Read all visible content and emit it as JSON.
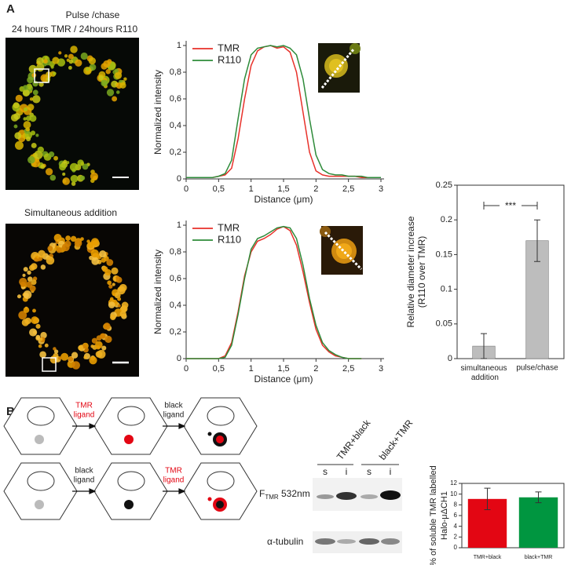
{
  "panel_labels": [
    "A",
    "B"
  ],
  "images": [
    {
      "caption": [
        "Pulse /chase",
        "24 hours TMR / 24hours R110"
      ]
    },
    {
      "caption": [
        "Simultaneous addition"
      ]
    }
  ],
  "chart_data": [
    {
      "type": "line",
      "x_label": "Distance (μm)",
      "y_label": "Normalized intensity",
      "x": [
        0,
        0.1,
        0.2,
        0.3,
        0.4,
        0.5,
        0.6,
        0.7,
        0.8,
        0.9,
        1,
        1.1,
        1.2,
        1.3,
        1.4,
        1.5,
        1.6,
        1.7,
        1.8,
        1.9,
        2,
        2.1,
        2.2,
        2.3,
        2.4,
        2.5,
        2.6,
        2.7,
        2.8,
        2.9,
        3
      ],
      "series": [
        {
          "name": "TMR",
          "color": "#e8312a",
          "values": [
            0.01,
            0.01,
            0.01,
            0.01,
            0.01,
            0.02,
            0.03,
            0.08,
            0.3,
            0.6,
            0.85,
            0.96,
            0.99,
            1,
            0.98,
            0.99,
            0.95,
            0.8,
            0.5,
            0.2,
            0.06,
            0.03,
            0.02,
            0.02,
            0.02,
            0.02,
            0.02,
            0.01,
            0.01,
            0.01,
            0.01
          ]
        },
        {
          "name": "R110",
          "color": "#2e8b3a",
          "values": [
            0.01,
            0.01,
            0.01,
            0.01,
            0.01,
            0.02,
            0.04,
            0.14,
            0.45,
            0.75,
            0.93,
            0.98,
            0.99,
            1,
            0.99,
            1,
            0.98,
            0.93,
            0.75,
            0.45,
            0.18,
            0.07,
            0.04,
            0.03,
            0.03,
            0.02,
            0.02,
            0.02,
            0.01,
            0.01,
            0.01
          ]
        }
      ],
      "xlim": [
        0,
        3
      ],
      "ylim": [
        0,
        1
      ],
      "xticks": [
        0,
        {
          "value": 0.5,
          "label": "0,5"
        },
        1,
        {
          "value": 1.5,
          "label": "1,5"
        },
        2,
        {
          "value": 2.5,
          "label": "2,5"
        },
        3
      ],
      "yticks": [
        0,
        {
          "value": 0.2,
          "label": "0,2"
        },
        {
          "value": 0.4,
          "label": "0,4"
        },
        {
          "value": 0.6,
          "label": "0,6"
        },
        {
          "value": 0.8,
          "label": "0,8"
        },
        1
      ],
      "legend": "upper left"
    },
    {
      "type": "line",
      "x_label": "Distance (μm)",
      "y_label": "Normalized intensity",
      "x": [
        0,
        0.1,
        0.2,
        0.3,
        0.4,
        0.5,
        0.6,
        0.7,
        0.8,
        0.9,
        1,
        1.1,
        1.2,
        1.3,
        1.4,
        1.5,
        1.6,
        1.7,
        1.8,
        1.9,
        2,
        2.1,
        2.2,
        2.3,
        2.4,
        2.5,
        2.6,
        2.7
      ],
      "series": [
        {
          "name": "TMR",
          "color": "#e8312a",
          "values": [
            0,
            0,
            0,
            0,
            0,
            0,
            0.02,
            0.12,
            0.35,
            0.62,
            0.8,
            0.88,
            0.9,
            0.93,
            0.97,
            0.99,
            0.96,
            0.85,
            0.65,
            0.42,
            0.22,
            0.1,
            0.05,
            0.02,
            0.01,
            0,
            0,
            0
          ]
        },
        {
          "name": "R110",
          "color": "#2e8b3a",
          "values": [
            0,
            0,
            0,
            0,
            0,
            0,
            0.01,
            0.1,
            0.33,
            0.6,
            0.82,
            0.9,
            0.92,
            0.95,
            0.98,
            0.99,
            0.98,
            0.9,
            0.7,
            0.45,
            0.25,
            0.12,
            0.06,
            0.03,
            0.01,
            0,
            0,
            0
          ]
        }
      ],
      "xlim": [
        0,
        3
      ],
      "ylim": [
        0,
        1
      ],
      "xticks": [
        0,
        {
          "value": 0.5,
          "label": "0,5"
        },
        1,
        {
          "value": 1.5,
          "label": "1,5"
        },
        2,
        {
          "value": 2.5,
          "label": "2,5"
        },
        3
      ],
      "yticks": [
        0,
        {
          "value": 0.2,
          "label": "0,2"
        },
        {
          "value": 0.4,
          "label": "0,4"
        },
        {
          "value": 0.6,
          "label": "0,6"
        },
        {
          "value": 0.8,
          "label": "0,8"
        },
        1
      ],
      "legend": "upper left"
    },
    {
      "type": "bar",
      "y_label": [
        "Relative diameter increase",
        "(R110 over TMR)"
      ],
      "categories": [
        "simultaneous addition",
        "pulse/chase"
      ],
      "values": [
        0.018,
        0.17
      ],
      "errors": [
        0.018,
        0.03
      ],
      "color": "#bdbdbd",
      "ylim": [
        0,
        0.25
      ],
      "yticks": [
        0,
        0.05,
        0.1,
        0.15,
        0.2,
        0.25
      ],
      "annotation": "***"
    },
    {
      "type": "bar",
      "y_label": [
        "% of soluble TMR labelled",
        "Halo-μΔCH1"
      ],
      "categories": [
        "TMR+black",
        "black+TMR"
      ],
      "values": [
        9.1,
        9.4
      ],
      "errors": [
        2,
        1
      ],
      "colors": [
        "#e30613",
        "#009640"
      ],
      "ylim": [
        0,
        12
      ],
      "yticks": [
        0,
        2,
        4,
        6,
        8,
        10,
        12
      ]
    }
  ],
  "diagram": {
    "arrow_labels": [
      [
        "TMR",
        "ligand"
      ],
      [
        "black",
        "ligand"
      ],
      [
        "black",
        "ligand"
      ],
      [
        "TMR",
        "ligand"
      ]
    ]
  },
  "blot": {
    "conditions": [
      "TMR+black",
      "black+TMR"
    ],
    "fractions": [
      "s",
      "i",
      "s",
      "i"
    ],
    "rows": [
      {
        "label": "F",
        "subscript": "TMR",
        "suffix": " 532nm"
      },
      {
        "label": "α-tubulin"
      }
    ]
  }
}
